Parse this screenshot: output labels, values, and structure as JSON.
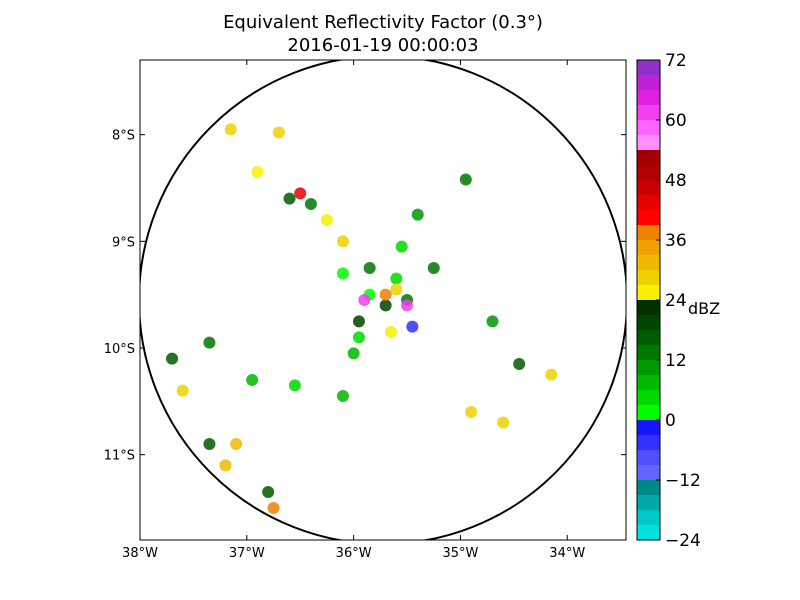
{
  "chart_data": {
    "type": "heatmap",
    "title": "Equivalent Reflectivity Factor (0.3°)",
    "subtitle": "2016-01-19 00:00:03",
    "xlabel": "",
    "ylabel": "",
    "x_ticks": [
      "38°W",
      "37°W",
      "36°W",
      "35°W",
      "34°W"
    ],
    "y_ticks": [
      "8°S",
      "9°S",
      "10°S",
      "11°S"
    ],
    "lon_range": [
      -38.0,
      -33.45
    ],
    "lat_range": [
      -11.8,
      -7.3
    ],
    "radar_center": {
      "lon": -35.78,
      "lat": -9.55
    },
    "colorbar": {
      "label": "dBZ",
      "ticks": [
        "72",
        "60",
        "48",
        "36",
        "24",
        "12",
        "0",
        "−12",
        "−24"
      ],
      "range": [
        -24,
        72
      ],
      "bins": [
        {
          "from": -24,
          "to": -21,
          "color": "#00e0e0"
        },
        {
          "from": -21,
          "to": -18,
          "color": "#00c8c8"
        },
        {
          "from": -18,
          "to": -15,
          "color": "#00a8a8"
        },
        {
          "from": -15,
          "to": -12,
          "color": "#008888"
        },
        {
          "from": -12,
          "to": -9,
          "color": "#6464ff"
        },
        {
          "from": -9,
          "to": -6,
          "color": "#5050ff"
        },
        {
          "from": -6,
          "to": -3,
          "color": "#3232ff"
        },
        {
          "from": -3,
          "to": 0,
          "color": "#1414ff"
        },
        {
          "from": 0,
          "to": 3,
          "color": "#00ff00"
        },
        {
          "from": 3,
          "to": 6,
          "color": "#00d800"
        },
        {
          "from": 6,
          "to": 9,
          "color": "#00b800"
        },
        {
          "from": 9,
          "to": 12,
          "color": "#009800"
        },
        {
          "from": 12,
          "to": 15,
          "color": "#007800"
        },
        {
          "from": 15,
          "to": 18,
          "color": "#005c00"
        },
        {
          "from": 18,
          "to": 21,
          "color": "#004400"
        },
        {
          "from": 21,
          "to": 24,
          "color": "#003000"
        },
        {
          "from": 24,
          "to": 27,
          "color": "#f8f000"
        },
        {
          "from": 27,
          "to": 30,
          "color": "#f0d000"
        },
        {
          "from": 30,
          "to": 33,
          "color": "#f0b800"
        },
        {
          "from": 33,
          "to": 36,
          "color": "#f0a000"
        },
        {
          "from": 36,
          "to": 39,
          "color": "#f08000"
        },
        {
          "from": 39,
          "to": 42,
          "color": "#ff0000"
        },
        {
          "from": 42,
          "to": 45,
          "color": "#e80000"
        },
        {
          "from": 45,
          "to": 48,
          "color": "#c80000"
        },
        {
          "from": 48,
          "to": 51,
          "color": "#b00000"
        },
        {
          "from": 51,
          "to": 54,
          "color": "#a00000"
        },
        {
          "from": 54,
          "to": 57,
          "color": "#ff90ff"
        },
        {
          "from": 57,
          "to": 60,
          "color": "#ff64ff"
        },
        {
          "from": 60,
          "to": 63,
          "color": "#f040f0"
        },
        {
          "from": 63,
          "to": 66,
          "color": "#e020e0"
        },
        {
          "from": 66,
          "to": 69,
          "color": "#c020d8"
        },
        {
          "from": 69,
          "to": 72,
          "color": "#9030c8"
        }
      ]
    },
    "echoes": [
      {
        "lon": -35.85,
        "lat": -9.5,
        "dbz": 0
      },
      {
        "lon": -35.6,
        "lat": -9.35,
        "dbz": 3
      },
      {
        "lon": -35.95,
        "lat": -9.9,
        "dbz": 3
      },
      {
        "lon": -35.45,
        "lat": -9.8,
        "dbz": -6
      },
      {
        "lon": -36.1,
        "lat": -9.3,
        "dbz": 0
      },
      {
        "lon": -35.5,
        "lat": -9.55,
        "dbz": 12
      },
      {
        "lon": -35.85,
        "lat": -9.25,
        "dbz": 12
      },
      {
        "lon": -35.55,
        "lat": -9.05,
        "dbz": 3
      },
      {
        "lon": -36.0,
        "lat": -10.05,
        "dbz": 6
      },
      {
        "lon": -35.7,
        "lat": -9.6,
        "dbz": 20
      },
      {
        "lon": -35.95,
        "lat": -9.75,
        "dbz": 20
      },
      {
        "lon": -35.6,
        "lat": -9.45,
        "dbz": 28
      },
      {
        "lon": -35.7,
        "lat": -9.5,
        "dbz": 36
      },
      {
        "lon": -35.9,
        "lat": -9.55,
        "dbz": 60
      },
      {
        "lon": -35.5,
        "lat": -9.6,
        "dbz": 62
      },
      {
        "lon": -35.65,
        "lat": -9.85,
        "dbz": 24
      },
      {
        "lon": -36.4,
        "lat": -8.65,
        "dbz": 12
      },
      {
        "lon": -36.25,
        "lat": -8.8,
        "dbz": 24
      },
      {
        "lon": -36.5,
        "lat": -8.55,
        "dbz": 42
      },
      {
        "lon": -36.6,
        "lat": -8.6,
        "dbz": 15
      },
      {
        "lon": -36.1,
        "lat": -9.0,
        "dbz": 28
      },
      {
        "lon": -36.55,
        "lat": -10.35,
        "dbz": 3
      },
      {
        "lon": -36.95,
        "lat": -10.3,
        "dbz": 6
      },
      {
        "lon": -36.1,
        "lat": -10.45,
        "dbz": 6
      },
      {
        "lon": -37.7,
        "lat": -10.1,
        "dbz": 15
      },
      {
        "lon": -37.6,
        "lat": -10.4,
        "dbz": 28
      },
      {
        "lon": -37.35,
        "lat": -10.9,
        "dbz": 15
      },
      {
        "lon": -37.2,
        "lat": -11.1,
        "dbz": 30
      },
      {
        "lon": -36.8,
        "lat": -11.35,
        "dbz": 15
      },
      {
        "lon": -36.75,
        "lat": -11.5,
        "dbz": 36
      },
      {
        "lon": -37.1,
        "lat": -10.9,
        "dbz": 30
      },
      {
        "lon": -37.35,
        "lat": -9.95,
        "dbz": 12
      },
      {
        "lon": -37.15,
        "lat": -7.95,
        "dbz": 28
      },
      {
        "lon": -36.9,
        "lat": -8.35,
        "dbz": 24
      },
      {
        "lon": -36.7,
        "lat": -7.98,
        "dbz": 28
      },
      {
        "lon": -35.25,
        "lat": -9.25,
        "dbz": 12
      },
      {
        "lon": -35.4,
        "lat": -8.75,
        "dbz": 9
      },
      {
        "lon": -34.95,
        "lat": -8.42,
        "dbz": 12
      },
      {
        "lon": -34.7,
        "lat": -9.75,
        "dbz": 9
      },
      {
        "lon": -34.45,
        "lat": -10.15,
        "dbz": 15
      },
      {
        "lon": -34.15,
        "lat": -10.25,
        "dbz": 28
      },
      {
        "lon": -34.9,
        "lat": -10.6,
        "dbz": 28
      },
      {
        "lon": -34.6,
        "lat": -10.7,
        "dbz": 28
      }
    ]
  }
}
